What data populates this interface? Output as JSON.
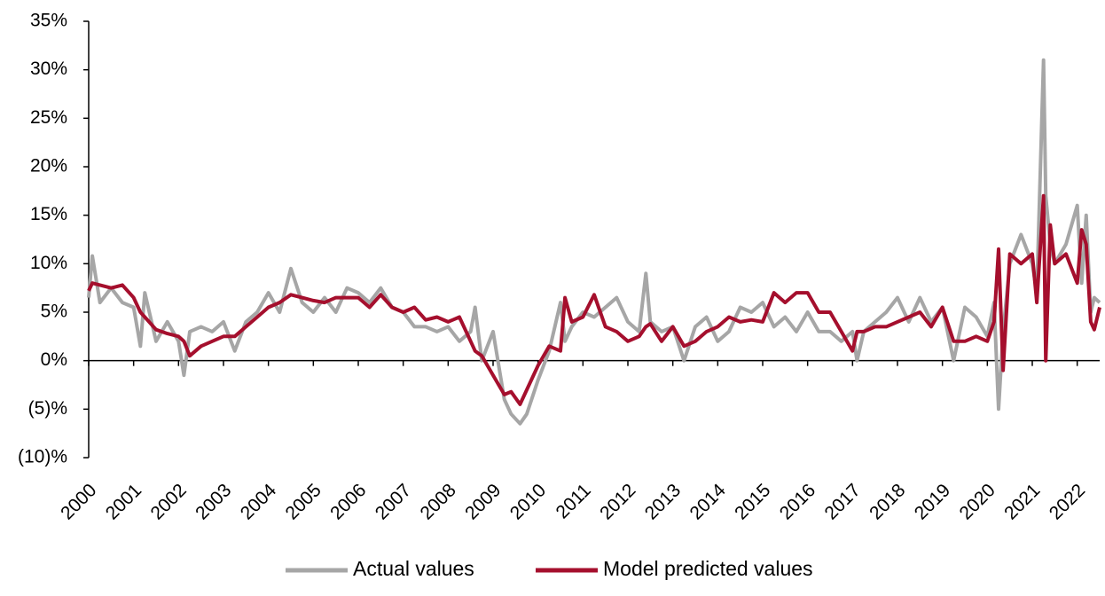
{
  "chart_data": {
    "type": "line",
    "x": [
      2000.0,
      2000.08,
      2000.25,
      2000.5,
      2000.75,
      2001.0,
      2001.15,
      2001.25,
      2001.5,
      2001.75,
      2002.0,
      2002.12,
      2002.25,
      2002.5,
      2002.75,
      2003.0,
      2003.25,
      2003.5,
      2003.75,
      2004.0,
      2004.25,
      2004.5,
      2004.75,
      2005.0,
      2005.25,
      2005.5,
      2005.75,
      2006.0,
      2006.25,
      2006.5,
      2006.75,
      2007.0,
      2007.25,
      2007.5,
      2007.75,
      2008.0,
      2008.25,
      2008.5,
      2008.6,
      2008.75,
      2009.0,
      2009.25,
      2009.4,
      2009.6,
      2009.75,
      2010.0,
      2010.25,
      2010.5,
      2010.6,
      2010.75,
      2011.0,
      2011.25,
      2011.5,
      2011.75,
      2012.0,
      2012.25,
      2012.4,
      2012.5,
      2012.75,
      2013.0,
      2013.25,
      2013.5,
      2013.75,
      2014.0,
      2014.25,
      2014.5,
      2014.75,
      2015.0,
      2015.25,
      2015.5,
      2015.75,
      2016.0,
      2016.25,
      2016.5,
      2016.75,
      2017.0,
      2017.1,
      2017.25,
      2017.5,
      2017.75,
      2018.0,
      2018.25,
      2018.5,
      2018.75,
      2019.0,
      2019.25,
      2019.5,
      2019.75,
      2020.0,
      2020.15,
      2020.25,
      2020.35,
      2020.5,
      2020.75,
      2021.0,
      2021.1,
      2021.25,
      2021.3,
      2021.4,
      2021.5,
      2021.75,
      2022.0,
      2022.1,
      2022.2,
      2022.3,
      2022.38,
      2022.5
    ],
    "series": [
      {
        "name": "Actual values",
        "color": "#a6a6a6",
        "values": [
          6.5,
          10.8,
          6,
          7.5,
          6,
          5.5,
          1.5,
          7,
          2,
          4,
          2,
          -1.5,
          3,
          3.5,
          3,
          4,
          1,
          4,
          5,
          7,
          5,
          9.5,
          6,
          5,
          6.5,
          5,
          7.5,
          7,
          6,
          7.5,
          5.5,
          5,
          3.5,
          3.5,
          3,
          3.5,
          2,
          3,
          5.5,
          0,
          3,
          -4,
          -5.5,
          -6.5,
          -5.5,
          -2,
          1,
          6,
          2,
          3.5,
          5,
          4.5,
          5.5,
          6.5,
          4,
          3,
          9,
          4,
          3,
          3.5,
          0,
          3.5,
          4.5,
          2,
          3,
          5.5,
          5,
          6,
          3.5,
          4.5,
          3,
          5,
          3,
          3,
          2,
          3,
          0,
          3,
          4,
          5,
          6.5,
          4,
          6.5,
          4,
          5.5,
          0,
          5.5,
          4.5,
          2.5,
          6,
          -5,
          3,
          10,
          13,
          10,
          7,
          31,
          17,
          12,
          10,
          12,
          16,
          8,
          15,
          5,
          6.5,
          6
        ]
      },
      {
        "name": "Model predicted values",
        "color": "#a50f2d",
        "values": [
          7.2,
          8,
          7.8,
          7.5,
          7.8,
          6.5,
          5,
          4.5,
          3.2,
          2.8,
          2.5,
          2,
          0.5,
          1.5,
          2,
          2.5,
          2.5,
          3.5,
          4.5,
          5.5,
          6,
          6.8,
          6.5,
          6.2,
          6,
          6.5,
          6.5,
          6.5,
          5.5,
          6.8,
          5.5,
          5,
          5.5,
          4.2,
          4.5,
          4,
          4.5,
          2,
          1,
          0.5,
          -1.5,
          -3.5,
          -3.2,
          -4.5,
          -3,
          -0.5,
          1.5,
          1,
          6.5,
          4,
          4.5,
          6.8,
          3.5,
          3,
          2,
          2.5,
          3.5,
          3.8,
          2,
          3.5,
          1.5,
          2,
          3,
          3.5,
          4.5,
          4,
          4.2,
          4,
          7,
          6,
          7,
          7,
          5,
          5,
          3,
          1,
          3,
          3,
          3.5,
          3.5,
          4,
          4.5,
          5,
          3.5,
          5.5,
          2,
          2,
          2.5,
          2,
          4,
          11.5,
          -1,
          11,
          10,
          11,
          6,
          17,
          0,
          14,
          10,
          11,
          8,
          13.5,
          12,
          4,
          3.2,
          5.5
        ]
      }
    ],
    "xlim": [
      2000,
      2022.5
    ],
    "xticks": [
      2000,
      2001,
      2002,
      2003,
      2004,
      2005,
      2006,
      2007,
      2008,
      2009,
      2010,
      2011,
      2012,
      2013,
      2014,
      2015,
      2016,
      2017,
      2018,
      2019,
      2020,
      2021,
      2022
    ],
    "ylim": [
      -10,
      35
    ],
    "yticks": [
      {
        "value": -10,
        "label": "(10)%"
      },
      {
        "value": -5,
        "label": "(5)%"
      },
      {
        "value": 0,
        "label": "0%"
      },
      {
        "value": 5,
        "label": "5%"
      },
      {
        "value": 10,
        "label": "10%"
      },
      {
        "value": 15,
        "label": "15%"
      },
      {
        "value": 20,
        "label": "20%"
      },
      {
        "value": 25,
        "label": "25%"
      },
      {
        "value": 30,
        "label": "30%"
      },
      {
        "value": 35,
        "label": "35%"
      }
    ],
    "legend": "bottom"
  }
}
